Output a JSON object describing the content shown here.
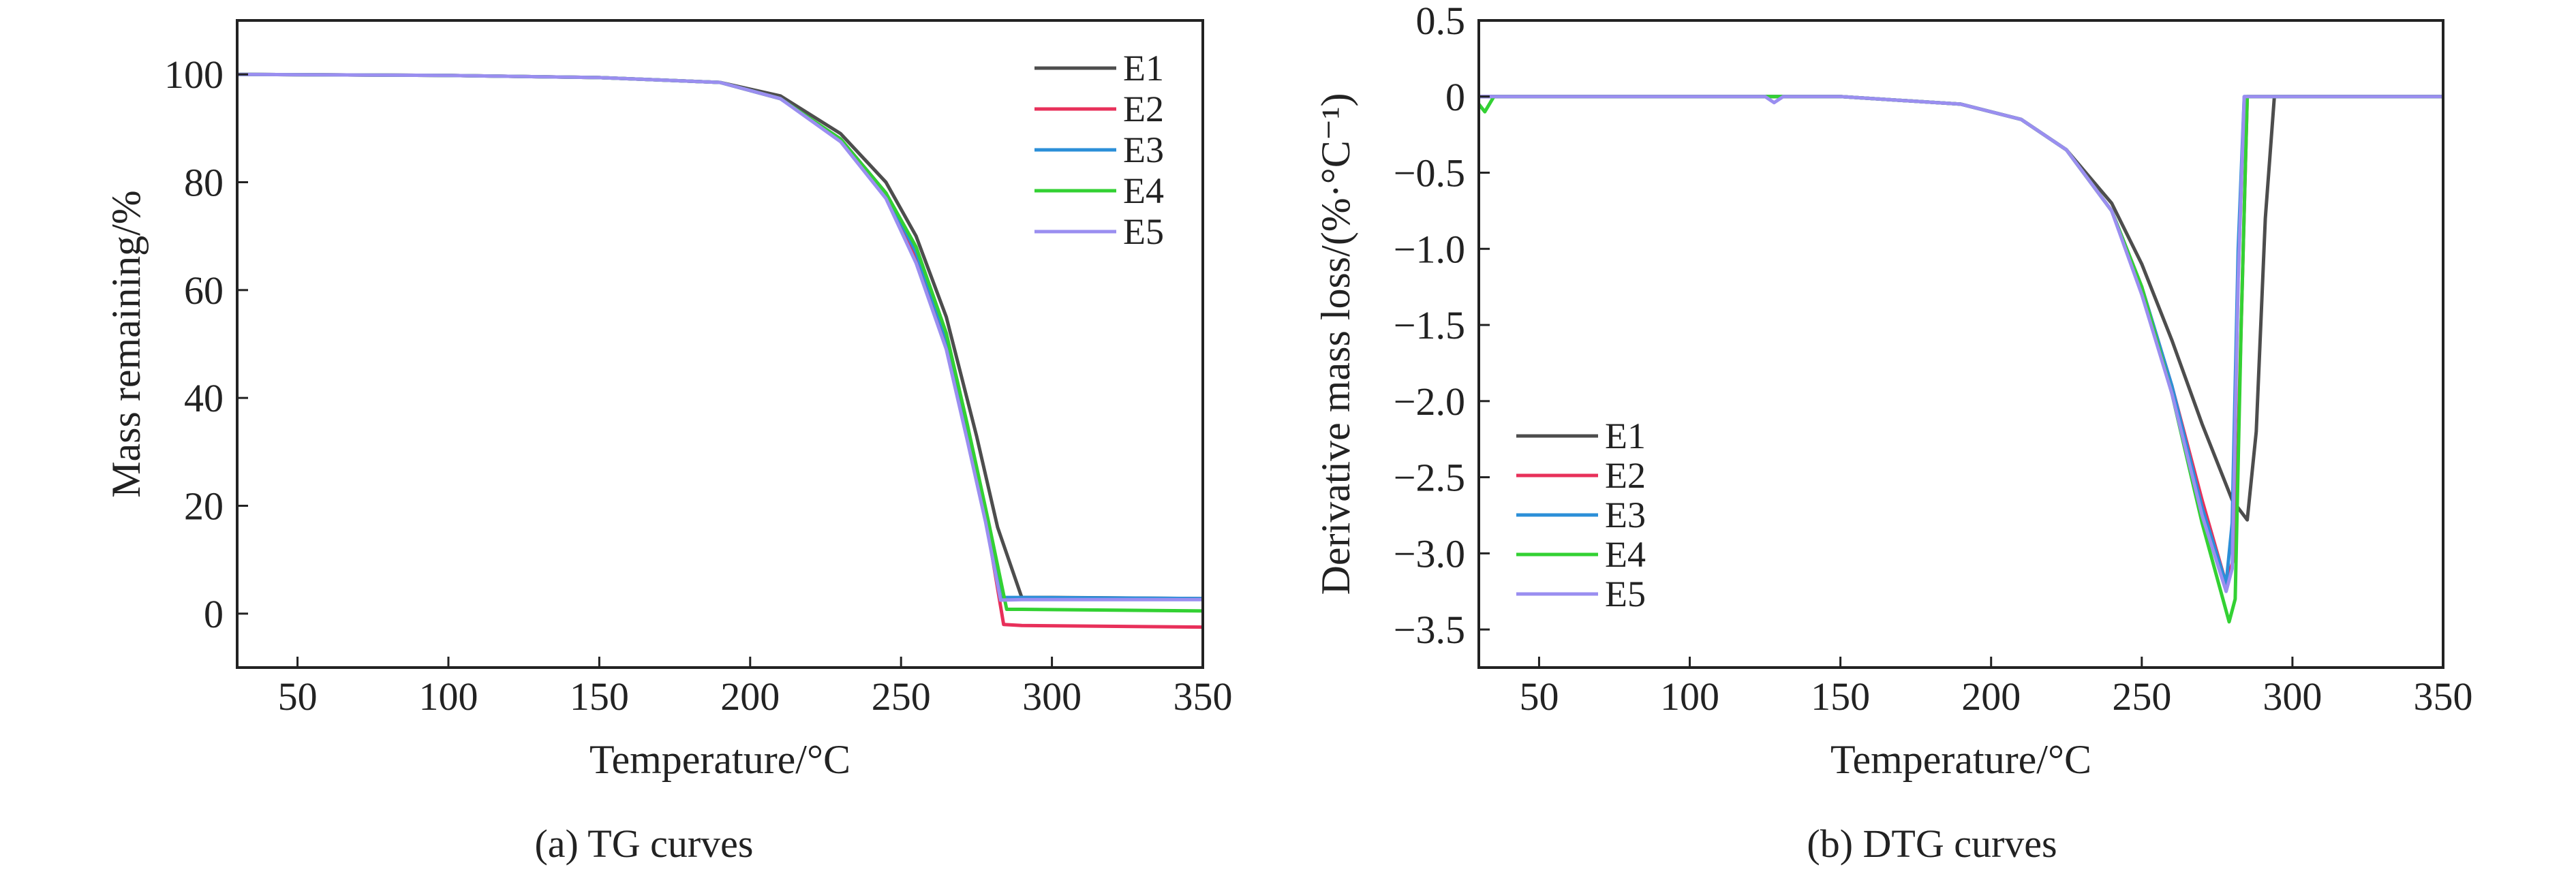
{
  "chart_data": [
    {
      "type": "line",
      "caption": "(a) TG curves",
      "xlabel": "Temperature/°C",
      "ylabel": "Mass remaining/%",
      "xlim": [
        30,
        350
      ],
      "ylim": [
        -10,
        110
      ],
      "xticks": [
        50,
        100,
        150,
        200,
        250,
        300,
        350
      ],
      "yticks": [
        0,
        20,
        40,
        60,
        80,
        100
      ],
      "legend_position": "top-right",
      "series": [
        {
          "name": "E1",
          "color": "#4d4d4d",
          "x": [
            30,
            100,
            150,
            190,
            210,
            230,
            245,
            255,
            265,
            275,
            282,
            290,
            300,
            350
          ],
          "y": [
            100,
            99.8,
            99.4,
            98.5,
            96,
            89,
            80,
            70,
            55,
            33,
            16,
            3,
            3,
            2.8
          ]
        },
        {
          "name": "E2",
          "color": "#e8305a",
          "x": [
            30,
            100,
            150,
            190,
            210,
            230,
            245,
            255,
            265,
            272,
            278,
            284,
            290,
            350
          ],
          "y": [
            100,
            99.8,
            99.4,
            98.5,
            95.5,
            88,
            78,
            66,
            50,
            34,
            18,
            -2,
            -2.2,
            -2.5
          ]
        },
        {
          "name": "E3",
          "color": "#2b8fd8",
          "x": [
            30,
            100,
            150,
            190,
            210,
            230,
            245,
            255,
            265,
            272,
            278,
            283,
            290,
            350
          ],
          "y": [
            100,
            99.8,
            99.4,
            98.5,
            95.5,
            88,
            78,
            67,
            51,
            34,
            18,
            3,
            3,
            2.8
          ]
        },
        {
          "name": "E4",
          "color": "#33d133",
          "x": [
            30,
            100,
            150,
            190,
            210,
            230,
            245,
            255,
            265,
            272,
            279,
            285,
            290,
            350
          ],
          "y": [
            100,
            99.8,
            99.4,
            98.5,
            95.5,
            88,
            78,
            68,
            52,
            35,
            17,
            0.8,
            0.8,
            0.5
          ]
        },
        {
          "name": "E5",
          "color": "#9a8ef0",
          "x": [
            30,
            100,
            150,
            190,
            210,
            230,
            245,
            255,
            265,
            272,
            278,
            283,
            290,
            350
          ],
          "y": [
            100,
            99.8,
            99.4,
            98.5,
            95.5,
            87.5,
            77,
            65,
            49,
            32,
            17,
            2.5,
            2.6,
            2.6
          ]
        }
      ]
    },
    {
      "type": "line",
      "caption": "(b) DTG curves",
      "xlabel": "Temperature/°C",
      "ylabel": "Derivative mass loss/(%·°C⁻¹)",
      "xlim": [
        30,
        350
      ],
      "ylim": [
        -3.75,
        0.5
      ],
      "xticks": [
        50,
        100,
        150,
        200,
        250,
        300,
        350
      ],
      "yticks": [
        0.5,
        0,
        -0.5,
        -1.0,
        -1.5,
        -2.0,
        -2.5,
        -3.0,
        -3.5
      ],
      "ytick_labels": [
        "0.5",
        "0",
        "−0.5",
        "−1.0",
        "−1.5",
        "−2.0",
        "−2.5",
        "−3.0",
        "−3.5"
      ],
      "legend_position": "bottom-left",
      "series": [
        {
          "name": "E1",
          "color": "#4d4d4d",
          "x": [
            30,
            60,
            100,
            150,
            190,
            210,
            225,
            240,
            250,
            260,
            270,
            280,
            285,
            288,
            291,
            294,
            300,
            350
          ],
          "y": [
            0,
            0,
            0,
            0,
            -0.05,
            -0.15,
            -0.35,
            -0.7,
            -1.1,
            -1.6,
            -2.15,
            -2.65,
            -2.78,
            -2.2,
            -0.8,
            0,
            0,
            0
          ]
        },
        {
          "name": "E2",
          "color": "#e8305a",
          "x": [
            30,
            60,
            100,
            150,
            190,
            210,
            225,
            240,
            250,
            260,
            270,
            278,
            281,
            283,
            285,
            290,
            350
          ],
          "y": [
            0,
            0,
            0,
            0,
            -0.05,
            -0.15,
            -0.35,
            -0.75,
            -1.25,
            -1.9,
            -2.65,
            -3.2,
            -3.0,
            -1.5,
            0,
            0,
            0
          ]
        },
        {
          "name": "E3",
          "color": "#2b8fd8",
          "x": [
            30,
            60,
            100,
            150,
            190,
            210,
            225,
            240,
            250,
            260,
            270,
            278,
            280,
            282,
            284,
            290,
            350
          ],
          "y": [
            0,
            0,
            0,
            0,
            -0.05,
            -0.15,
            -0.35,
            -0.75,
            -1.25,
            -1.9,
            -2.7,
            -3.2,
            -2.8,
            -1.0,
            0,
            0,
            0
          ]
        },
        {
          "name": "E4",
          "color": "#33d133",
          "x": [
            30,
            32,
            35,
            60,
            100,
            150,
            190,
            210,
            225,
            240,
            250,
            260,
            270,
            279,
            281,
            283,
            285,
            290,
            350
          ],
          "y": [
            -0.05,
            -0.1,
            0,
            0,
            0,
            0,
            -0.05,
            -0.15,
            -0.35,
            -0.75,
            -1.25,
            -1.95,
            -2.8,
            -3.45,
            -3.3,
            -1.5,
            0,
            0,
            0
          ]
        },
        {
          "name": "E5",
          "color": "#9a8ef0",
          "x": [
            30,
            60,
            100,
            125,
            128,
            131,
            150,
            190,
            210,
            225,
            240,
            250,
            260,
            270,
            278,
            280,
            282,
            284,
            290,
            350
          ],
          "y": [
            0,
            0,
            0,
            0,
            -0.04,
            0,
            0,
            -0.05,
            -0.15,
            -0.35,
            -0.75,
            -1.3,
            -1.95,
            -2.75,
            -3.25,
            -3.1,
            -1.2,
            0,
            0,
            0
          ]
        }
      ]
    }
  ]
}
